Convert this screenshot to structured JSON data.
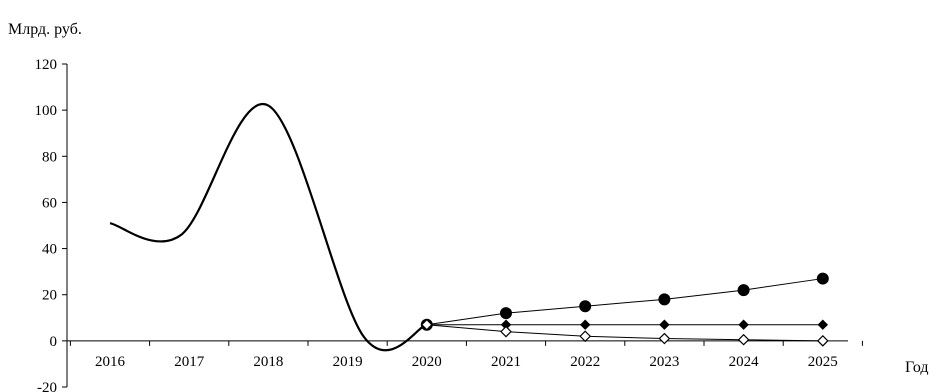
{
  "chart_data": {
    "type": "line",
    "title": "",
    "ylabel": "Млрд. руб.",
    "xlabel": "Год",
    "ylim": [
      -20,
      120
    ],
    "yticks": [
      -20,
      0,
      20,
      40,
      60,
      80,
      100,
      120
    ],
    "categories": [
      "2016",
      "2017",
      "2018",
      "2019",
      "2020",
      "2021",
      "2022",
      "2023",
      "2024",
      "2025"
    ],
    "grid": false,
    "legend": "none",
    "series": [
      {
        "marker": "none",
        "style": "smooth",
        "color": "#000000",
        "points": [
          {
            "x": 2016.0,
            "y": 51
          },
          {
            "x": 2016.9,
            "y": 46
          },
          {
            "x": 2018.0,
            "y": 102
          },
          {
            "x": 2019.2,
            "y": 2
          },
          {
            "x": 2020.0,
            "y": 7
          }
        ]
      },
      {
        "marker": "filled-circle",
        "color": "#000000",
        "points": [
          {
            "x": 2020,
            "y": 7
          },
          {
            "x": 2021,
            "y": 12
          },
          {
            "x": 2022,
            "y": 15
          },
          {
            "x": 2023,
            "y": 18
          },
          {
            "x": 2024,
            "y": 22
          },
          {
            "x": 2025,
            "y": 27
          }
        ]
      },
      {
        "marker": "filled-diamond",
        "color": "#000000",
        "points": [
          {
            "x": 2020,
            "y": 7
          },
          {
            "x": 2021,
            "y": 7
          },
          {
            "x": 2022,
            "y": 7
          },
          {
            "x": 2023,
            "y": 7
          },
          {
            "x": 2024,
            "y": 7
          },
          {
            "x": 2025,
            "y": 7
          }
        ]
      },
      {
        "marker": "open-diamond",
        "color": "#000000",
        "points": [
          {
            "x": 2020,
            "y": 7
          },
          {
            "x": 2021,
            "y": 4
          },
          {
            "x": 2022,
            "y": 2
          },
          {
            "x": 2023,
            "y": 1
          },
          {
            "x": 2024,
            "y": 0.5
          },
          {
            "x": 2025,
            "y": 0
          }
        ]
      }
    ]
  }
}
